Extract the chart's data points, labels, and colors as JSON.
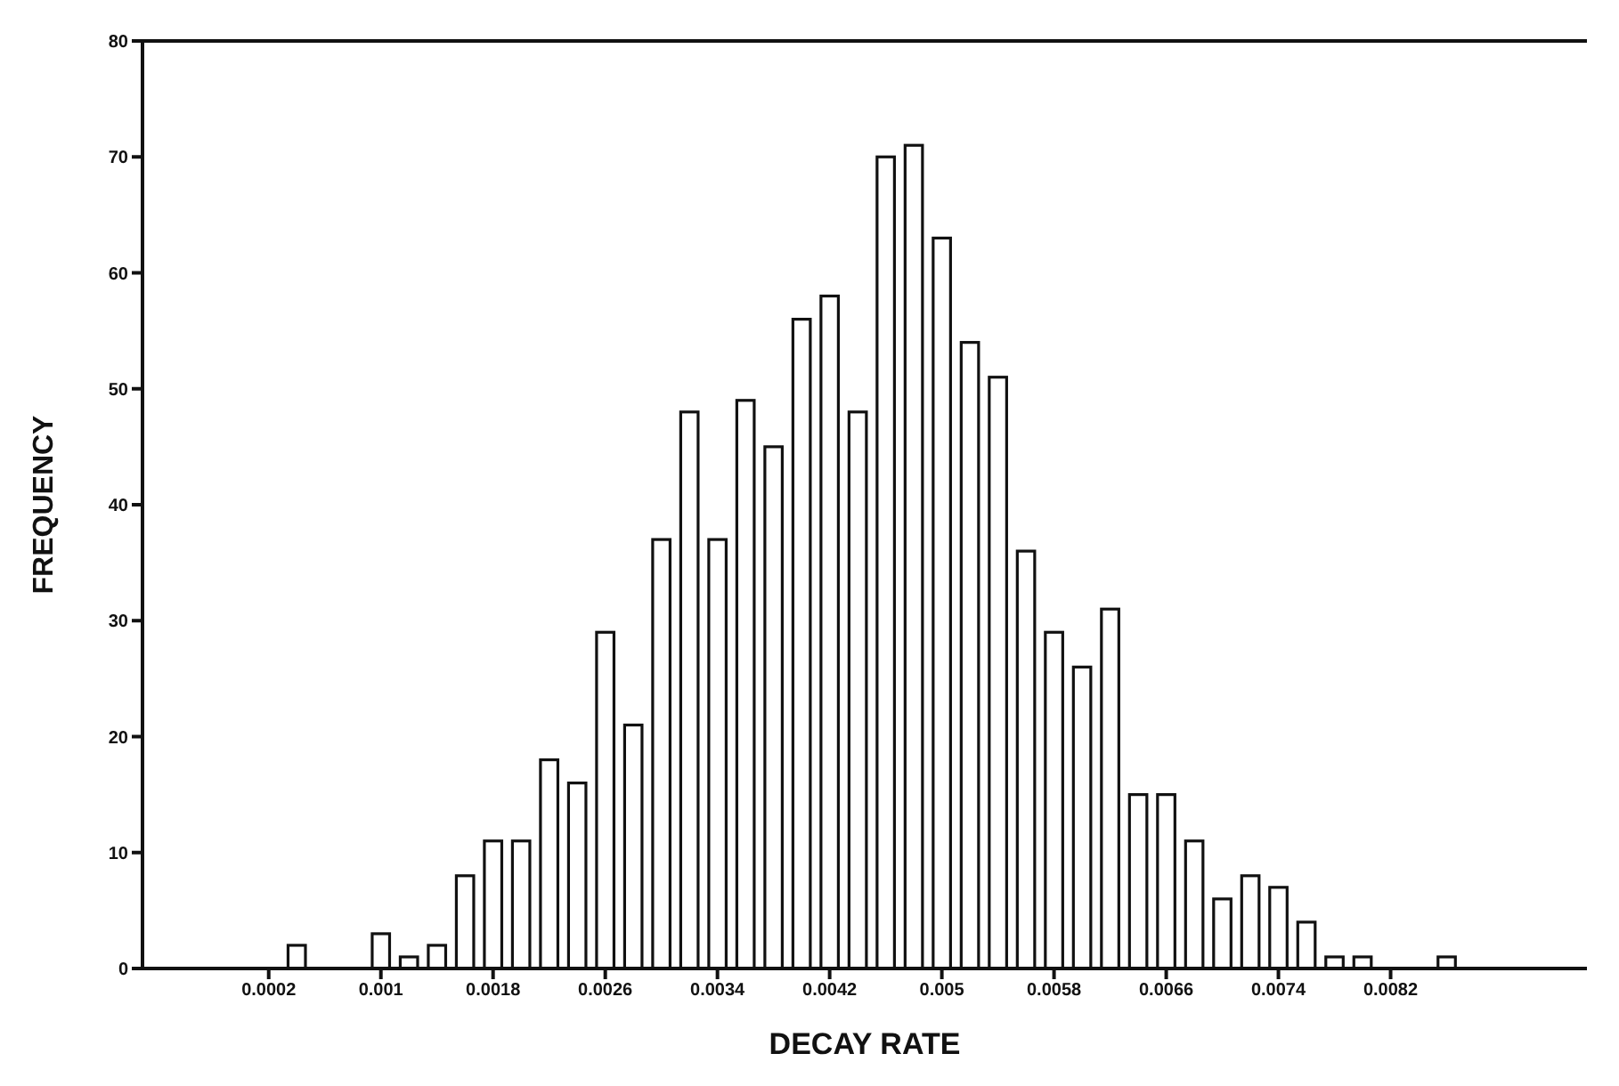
{
  "chart_data": {
    "type": "histogram",
    "xlabel": "DECAY RATE",
    "ylabel": "FREQUENCY",
    "bins": [
      0.0003,
      0.0005,
      0.0007,
      0.0009,
      0.0011,
      0.0013,
      0.0015,
      0.0017,
      0.0019,
      0.0021,
      0.0023,
      0.0025,
      0.0027,
      0.0029,
      0.0031,
      0.0033,
      0.0035,
      0.0037,
      0.0039,
      0.0041,
      0.0043,
      0.0045,
      0.0047,
      0.0049,
      0.0051,
      0.0053,
      0.0055,
      0.0057,
      0.0059,
      0.0061,
      0.0063,
      0.0065,
      0.0067,
      0.0069,
      0.0071,
      0.0073,
      0.0075,
      0.0077,
      0.0079,
      0.0081,
      0.0083,
      0.0085,
      0.0087
    ],
    "values": [
      2,
      0,
      0,
      3,
      1,
      2,
      8,
      11,
      11,
      18,
      16,
      29,
      21,
      37,
      48,
      37,
      49,
      45,
      56,
      58,
      48,
      70,
      71,
      63,
      54,
      51,
      36,
      29,
      26,
      31,
      15,
      15,
      11,
      6,
      8,
      7,
      4,
      1,
      1,
      0,
      0,
      1
    ],
    "color": "#ffffff",
    "xlim": [
      -0.0007,
      0.0096
    ],
    "xticks": [
      0.0002,
      0.001,
      0.0018,
      0.0026,
      0.0034,
      0.0042,
      0.005,
      0.0058,
      0.0066,
      0.0074,
      0.0082
    ],
    "ylim": [
      0,
      80
    ],
    "yticks": [
      0,
      10,
      20,
      30,
      40,
      50,
      60,
      70,
      80
    ],
    "grid": false,
    "legend": false
  }
}
